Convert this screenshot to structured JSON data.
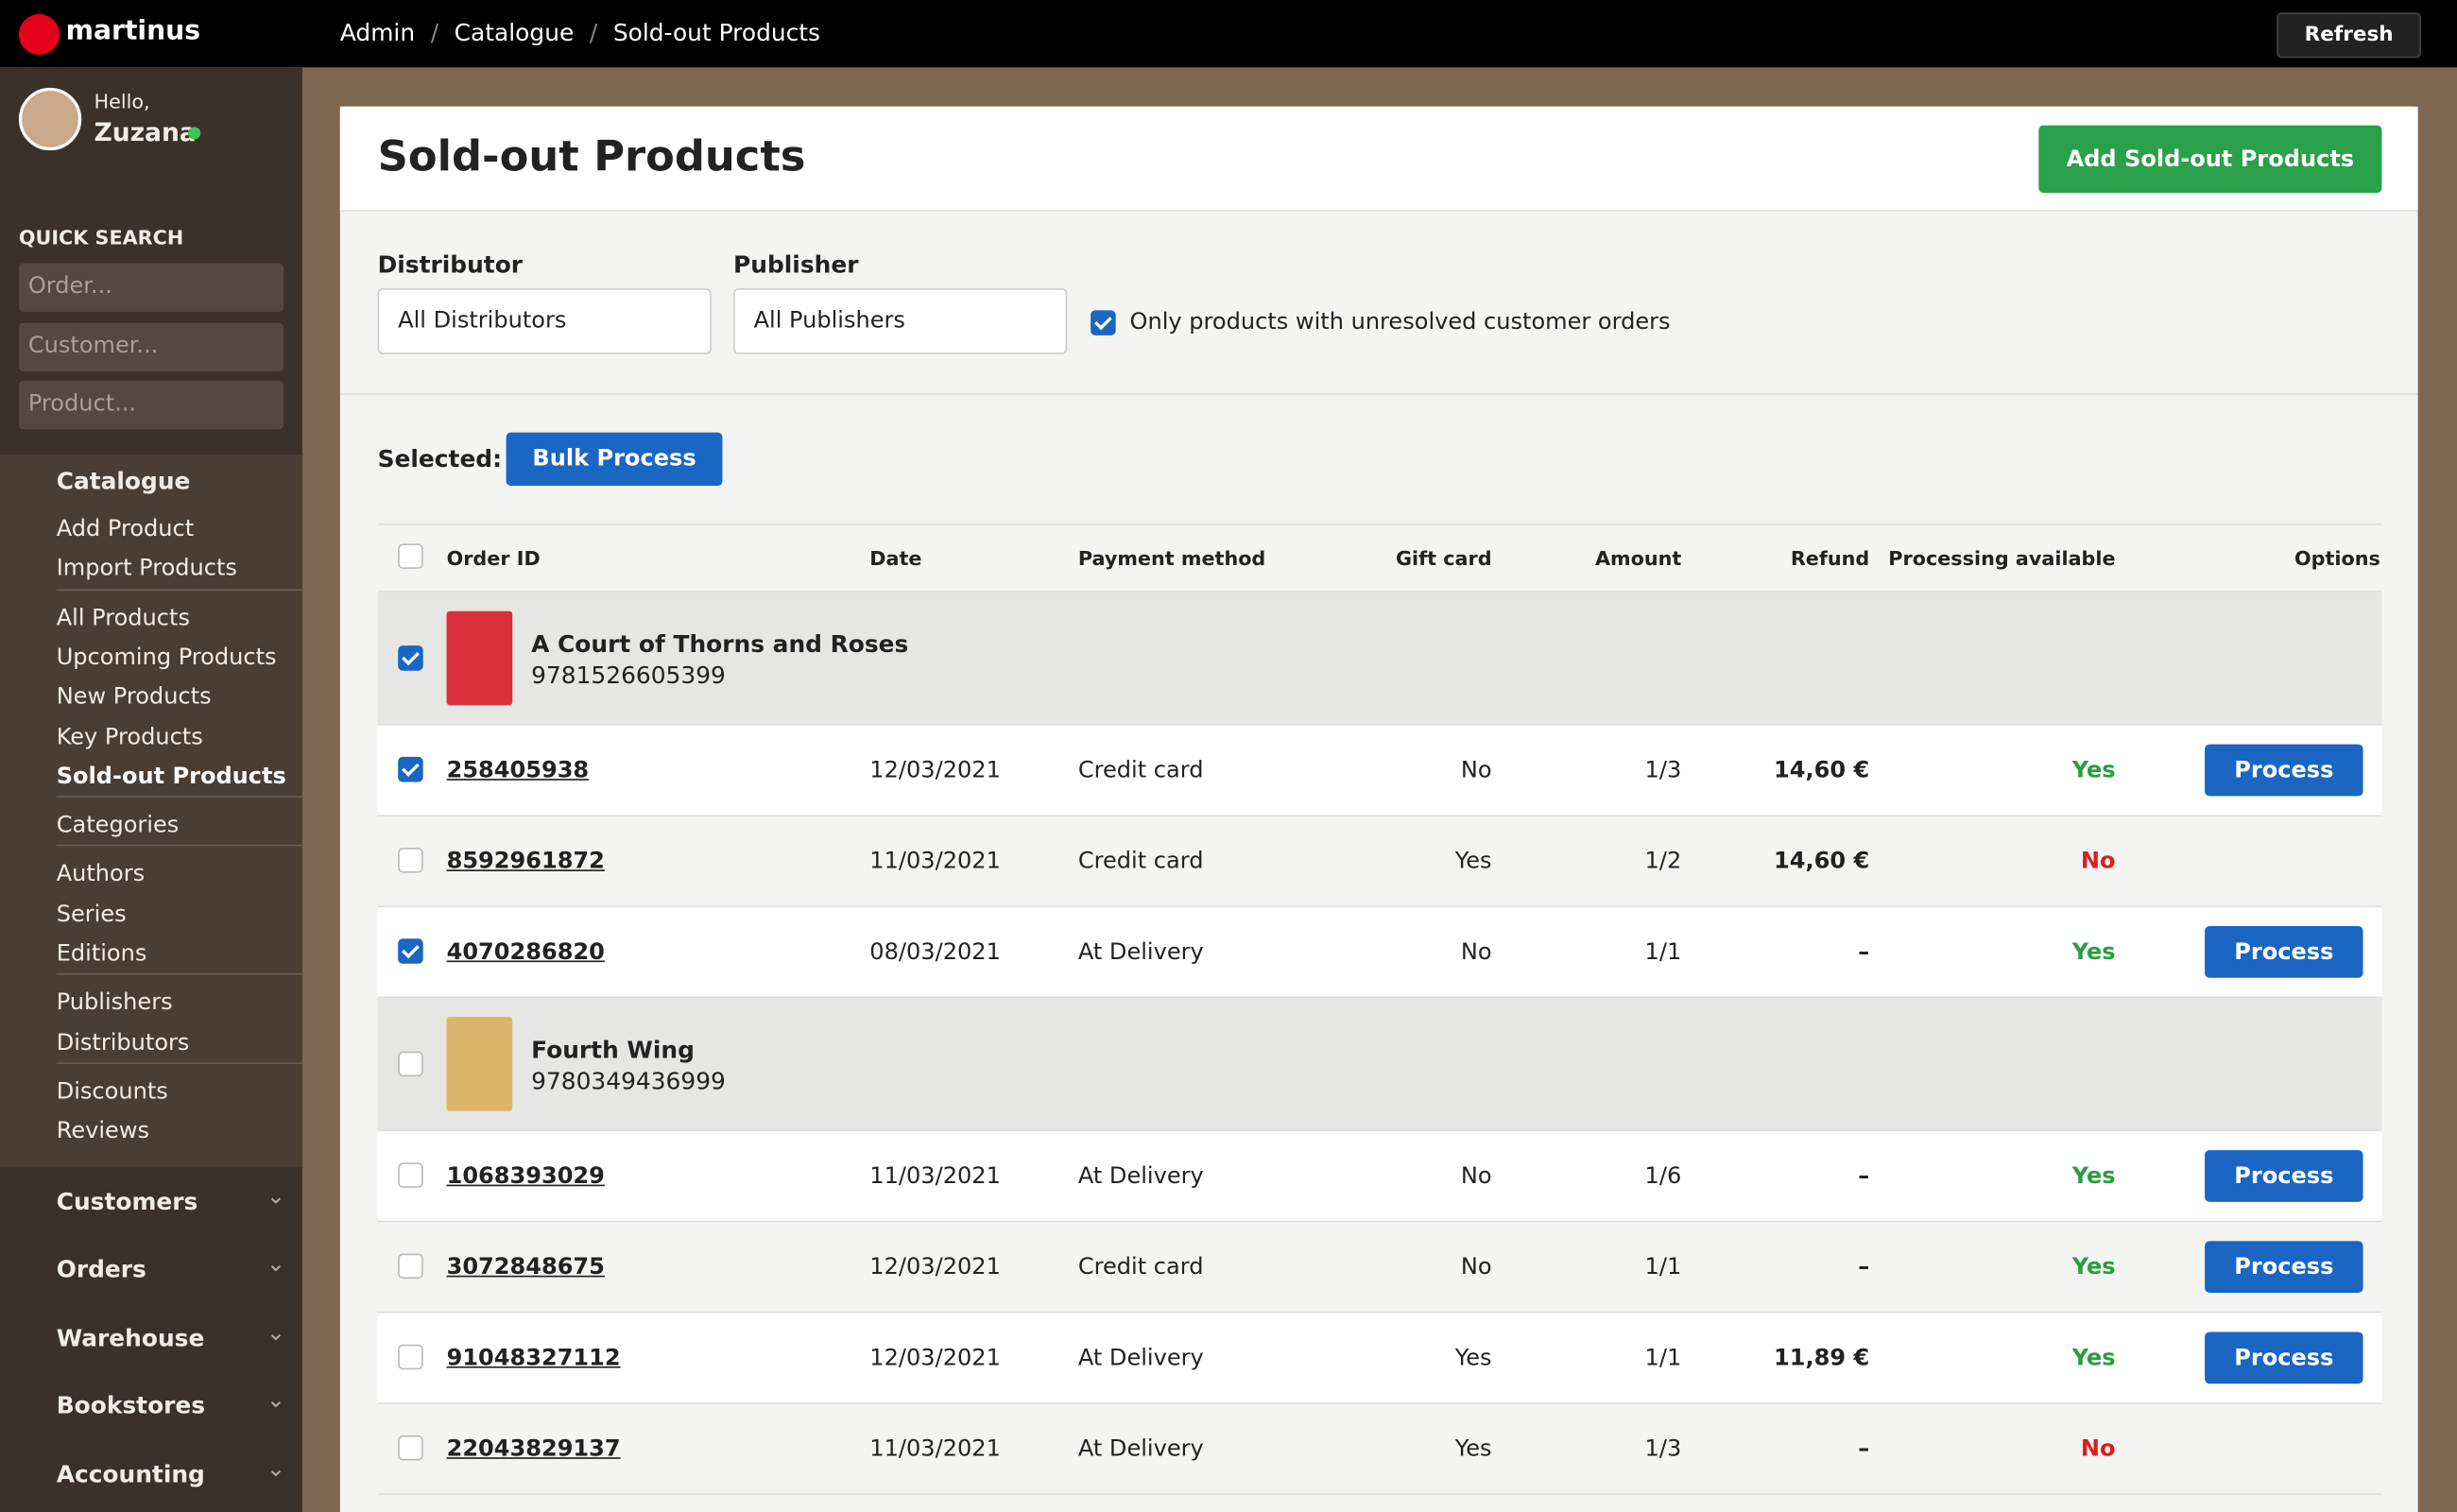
{
  "header": {
    "brand": "martinus",
    "breadcrumb": [
      "Admin",
      "Catalogue",
      "Sold-out Products"
    ],
    "refresh": "Refresh"
  },
  "sidebar": {
    "greeting": "Hello,",
    "user": "Zuzana",
    "quick_search": {
      "label": "QUICK SEARCH",
      "placeholders": [
        "Order...",
        "Customer...",
        "Product..."
      ]
    },
    "catalogue": {
      "title": "Catalogue",
      "groups": [
        [
          "Add Product",
          "Import Products"
        ],
        [
          "All Products",
          "Upcoming Products",
          "New Products",
          "Key Products",
          "Sold-out Products"
        ],
        [
          "Categories"
        ],
        [
          "Authors",
          "Series",
          "Editions"
        ],
        [
          "Publishers",
          "Distributors"
        ],
        [
          "Discounts",
          "Reviews"
        ]
      ],
      "active": "Sold-out Products"
    },
    "sections": [
      "Customers",
      "Orders",
      "Warehouse",
      "Bookstores",
      "Accounting"
    ]
  },
  "main": {
    "title": "Sold-out Products",
    "add_button": "Add Sold-out Products",
    "filters": {
      "distributor": {
        "label": "Distributor",
        "value": "All Distributors"
      },
      "publisher": {
        "label": "Publisher",
        "value": "All Publishers"
      },
      "only_unresolved": {
        "label": "Only products with unresolved customer orders",
        "checked": true
      }
    },
    "selected_label": "Selected:",
    "bulk_button": "Bulk Process",
    "process_label": "Process",
    "table": {
      "columns": [
        "Order ID",
        "Date",
        "Payment method",
        "Gift card",
        "Amount",
        "Refund",
        "Processing available",
        "Options"
      ],
      "groups": [
        {
          "title": "A Court of Thorns and Roses",
          "isbn": "9781526605399",
          "selected": true,
          "cover": "#d8303a",
          "rows": [
            {
              "id": "258405938",
              "date": "12/03/2021",
              "payment": "Credit card",
              "gift": "No",
              "amount": "1/3",
              "refund": "14,60 €",
              "processing": "Yes",
              "selected": true
            },
            {
              "id": "8592961872",
              "date": "11/03/2021",
              "payment": "Credit card",
              "gift": "Yes",
              "amount": "1/2",
              "refund": "14,60 €",
              "processing": "No",
              "selected": false
            },
            {
              "id": "4070286820",
              "date": "08/03/2021",
              "payment": "At Delivery",
              "gift": "No",
              "amount": "1/1",
              "refund": "–",
              "processing": "Yes",
              "selected": true
            }
          ]
        },
        {
          "title": "Fourth Wing",
          "isbn": "9780349436999",
          "selected": false,
          "cover": "#d9b46a",
          "rows": [
            {
              "id": "1068393029",
              "date": "11/03/2021",
              "payment": "At Delivery",
              "gift": "No",
              "amount": "1/6",
              "refund": "–",
              "processing": "Yes",
              "selected": false
            },
            {
              "id": "3072848675",
              "date": "12/03/2021",
              "payment": "Credit card",
              "gift": "No",
              "amount": "1/1",
              "refund": "–",
              "processing": "Yes",
              "selected": false
            },
            {
              "id": "91048327112",
              "date": "12/03/2021",
              "payment": "At Delivery",
              "gift": "Yes",
              "amount": "1/1",
              "refund": "11,89 €",
              "processing": "Yes",
              "selected": false
            },
            {
              "id": "22043829137",
              "date": "11/03/2021",
              "payment": "At Delivery",
              "gift": "Yes",
              "amount": "1/3",
              "refund": "–",
              "processing": "No",
              "selected": false
            }
          ]
        }
      ]
    }
  }
}
